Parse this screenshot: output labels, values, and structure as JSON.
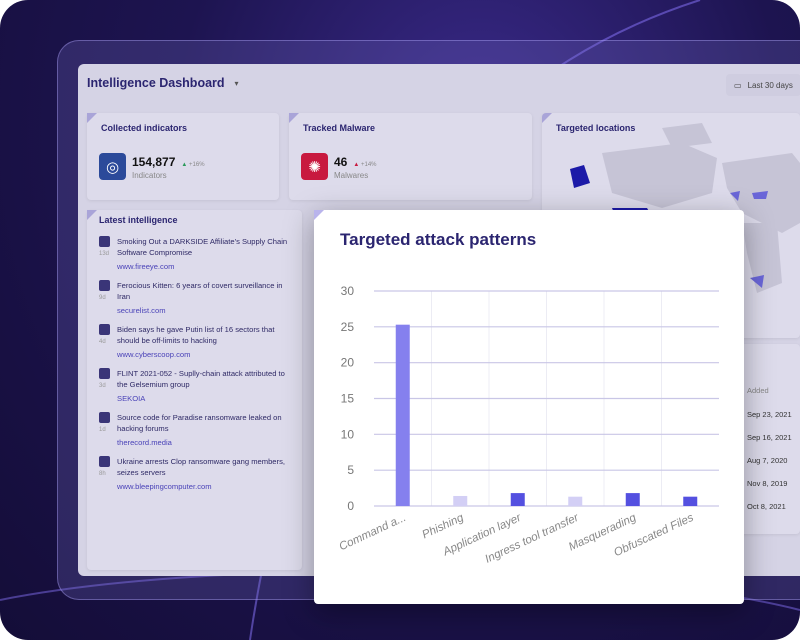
{
  "header": {
    "title": "Intelligence Dashboard",
    "date_range": "Last 30 days"
  },
  "collected": {
    "title": "Collected indicators",
    "value": "154,877",
    "label": "Indicators",
    "delta": "+16%",
    "icon": "fingerprint-icon",
    "color": "#2b4a9a"
  },
  "malware": {
    "title": "Tracked Malware",
    "value": "46",
    "label": "Malwares",
    "delta": "+14%",
    "icon": "bug-icon",
    "color": "#c8193f"
  },
  "locations": {
    "title": "Targeted locations"
  },
  "intel": {
    "title": "Latest intelligence",
    "items": [
      {
        "title": "Smoking Out a DARKSIDE Affiliate's Supply Chain Software Compromise",
        "age": "13d",
        "source": "www.fireeye.com"
      },
      {
        "title": "Ferocious Kitten: 6 years of covert surveillance in Iran",
        "age": "9d",
        "source": "securelist.com"
      },
      {
        "title": "Biden says he gave Putin list of 16 sectors that should be off-limits to hacking",
        "age": "4d",
        "source": "www.cyberscoop.com"
      },
      {
        "title": "FLINT 2021-052 - Suplly-chain attack attributed to the Gelsemium group",
        "age": "3d",
        "source": "SEKOIA"
      },
      {
        "title": "Source code for Paradise ransomware leaked on hacking forums",
        "age": "1d",
        "source": "therecord.media"
      },
      {
        "title": "Ukraine arrests Clop ransomware gang members, seizes servers",
        "age": "8h",
        "source": "www.bleepingcomputer.com"
      }
    ]
  },
  "table": {
    "header": "Added",
    "dates": [
      "Sep 23, 2021",
      "Sep 16, 2021",
      "Aug 7, 2020",
      "Nov 8, 2019",
      "Oct 8, 2021"
    ]
  },
  "chart_data": {
    "type": "bar",
    "title": "Targeted attack patterns",
    "categories": [
      "Command a...",
      "Phishing",
      "Application layer",
      "Ingress tool transfer",
      "Masquerading",
      "Obfuscated Files"
    ],
    "values": [
      25.3,
      1.4,
      1.8,
      1.3,
      1.8,
      1.3
    ],
    "colors": [
      "#8580ee",
      "#d3cff5",
      "#5450e0",
      "#d3cff5",
      "#5450e0",
      "#5450e0"
    ],
    "ylim": [
      0,
      30
    ],
    "yticks": [
      0,
      5,
      10,
      15,
      20,
      25,
      30
    ],
    "grid": true
  }
}
